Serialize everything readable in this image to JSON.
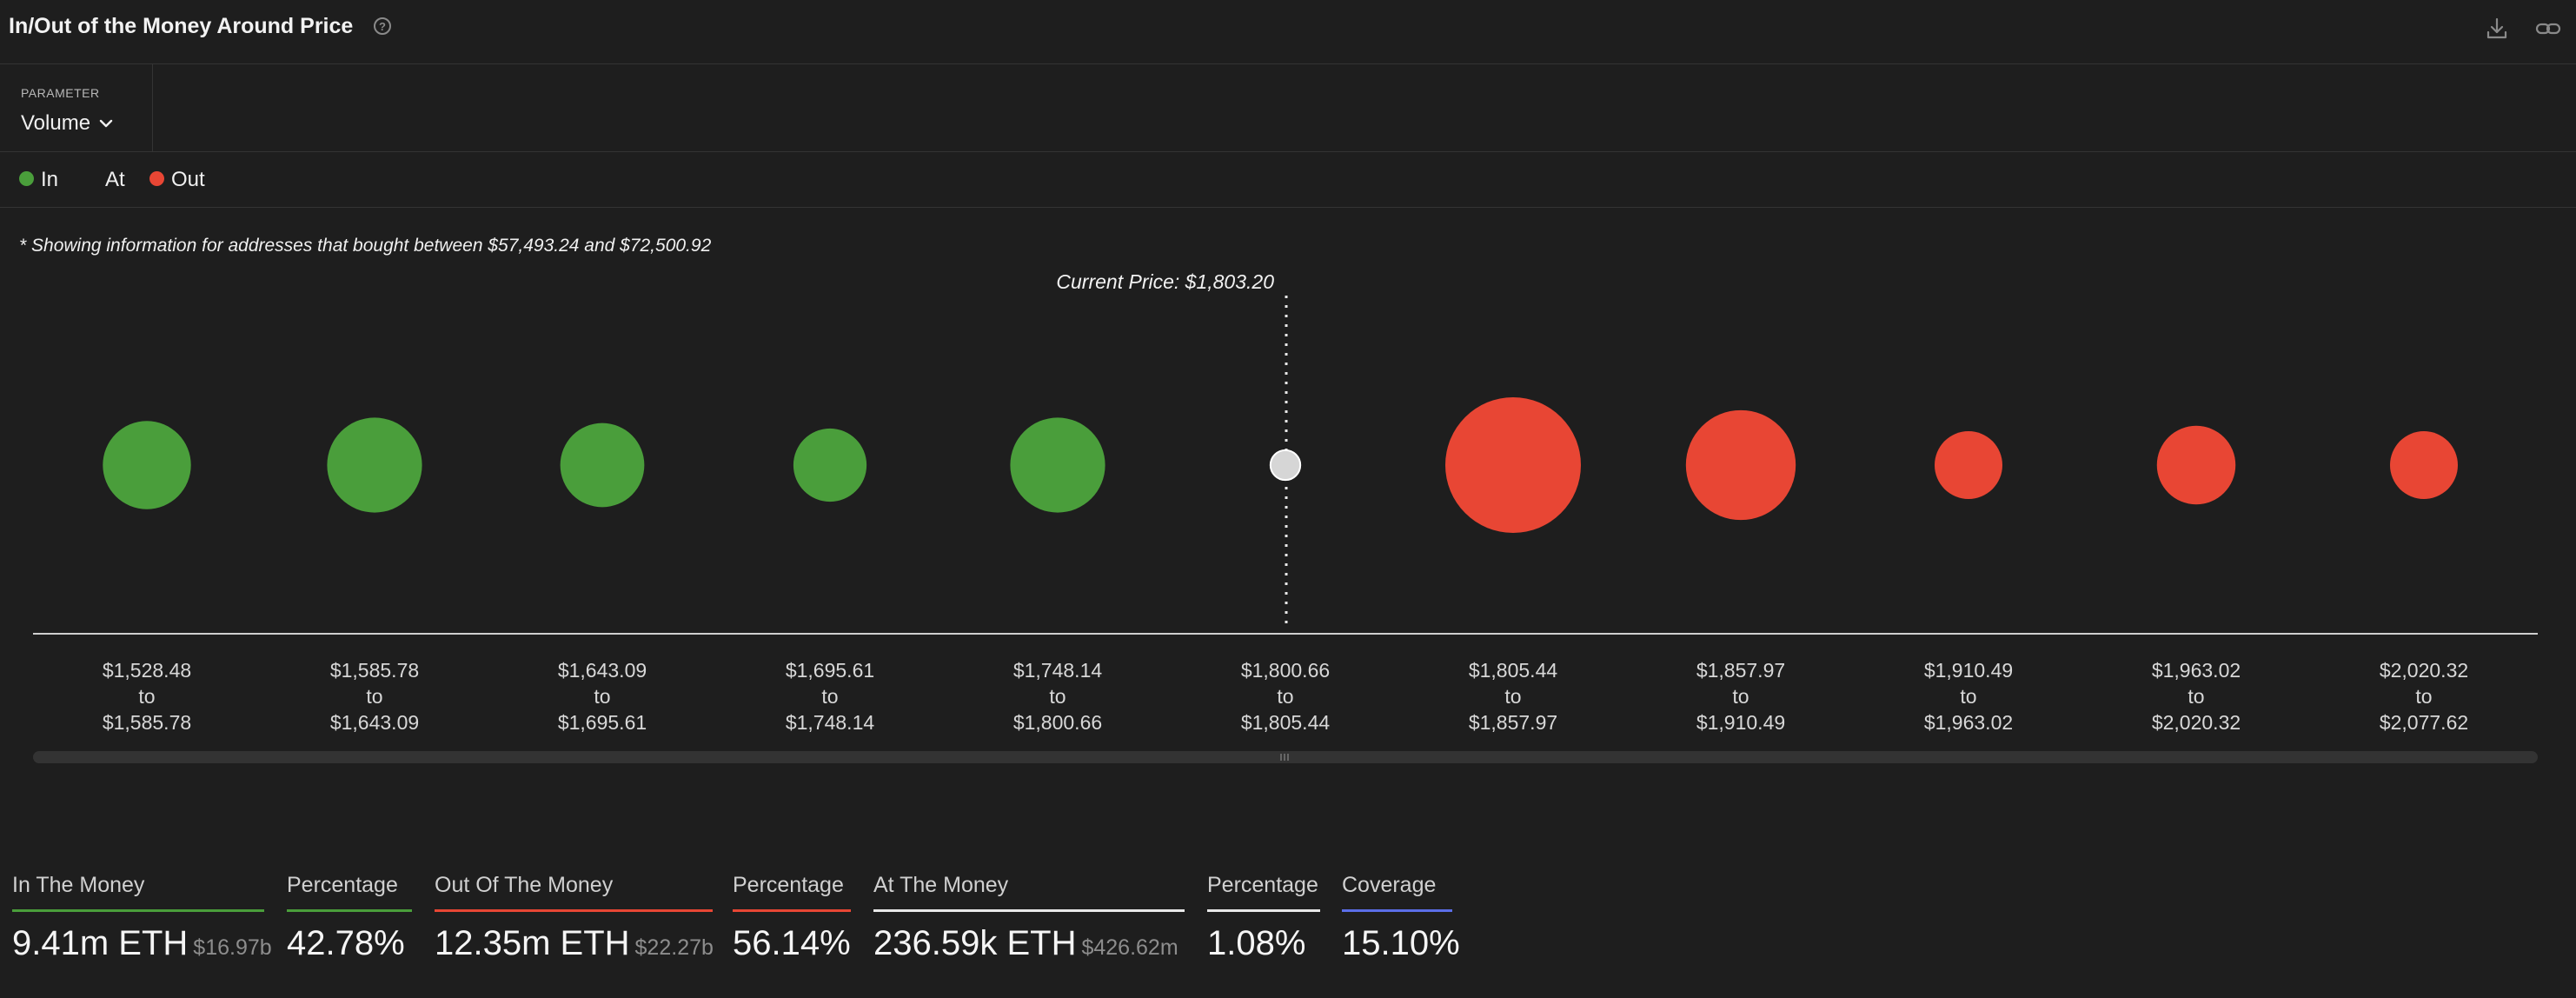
{
  "header": {
    "title": "In/Out of the Money Around Price",
    "help_icon": "question-circle-icon",
    "download_icon": "download-icon",
    "link_icon": "link-icon"
  },
  "parameter": {
    "label": "PARAMETER",
    "value": "Volume"
  },
  "legend": {
    "in": "In",
    "at": "At",
    "out": "Out"
  },
  "colors": {
    "in": "#4a9e3b",
    "at": "#d6d6d6",
    "out": "#e84634",
    "coverage": "#5b6ee8",
    "at_line": "#e8e8e8"
  },
  "note": "* Showing information for addresses that bought between $57,493.24 and $72,500.92",
  "chart_data": {
    "type": "bubble",
    "current_price_label": "Current Price: $1,803.20",
    "buckets": [
      {
        "from": "$1,528.48",
        "to": "$1,585.78",
        "status": "in",
        "size": 0.65
      },
      {
        "from": "$1,585.78",
        "to": "$1,643.09",
        "status": "in",
        "size": 0.7
      },
      {
        "from": "$1,643.09",
        "to": "$1,695.61",
        "status": "in",
        "size": 0.62
      },
      {
        "from": "$1,695.61",
        "to": "$1,748.14",
        "status": "in",
        "size": 0.54
      },
      {
        "from": "$1,748.14",
        "to": "$1,800.66",
        "status": "in",
        "size": 0.7
      },
      {
        "from": "$1,800.66",
        "to": "$1,805.44",
        "status": "at",
        "size": 0.22
      },
      {
        "from": "$1,805.44",
        "to": "$1,857.97",
        "status": "out",
        "size": 1.0
      },
      {
        "from": "$1,857.97",
        "to": "$1,910.49",
        "status": "out",
        "size": 0.81
      },
      {
        "from": "$1,910.49",
        "to": "$1,963.02",
        "status": "out",
        "size": 0.5
      },
      {
        "from": "$1,963.02",
        "to": "$2,020.32",
        "status": "out",
        "size": 0.58
      },
      {
        "from": "$2,020.32",
        "to": "$2,077.62",
        "status": "out",
        "size": 0.5
      }
    ],
    "range_joiner": "to"
  },
  "stats": {
    "in_label": "In The Money",
    "in_value": "9.41m ETH",
    "in_usd": "$16.97b",
    "in_pct_label": "Percentage",
    "in_pct": "42.78%",
    "out_label": "Out Of The Money",
    "out_value": "12.35m ETH",
    "out_usd": "$22.27b",
    "out_pct_label": "Percentage",
    "out_pct": "56.14%",
    "at_label": "At The Money",
    "at_value": "236.59k ETH",
    "at_usd": "$426.62m",
    "at_pct_label": "Percentage",
    "at_pct": "1.08%",
    "coverage_label": "Coverage",
    "coverage": "15.10%"
  }
}
